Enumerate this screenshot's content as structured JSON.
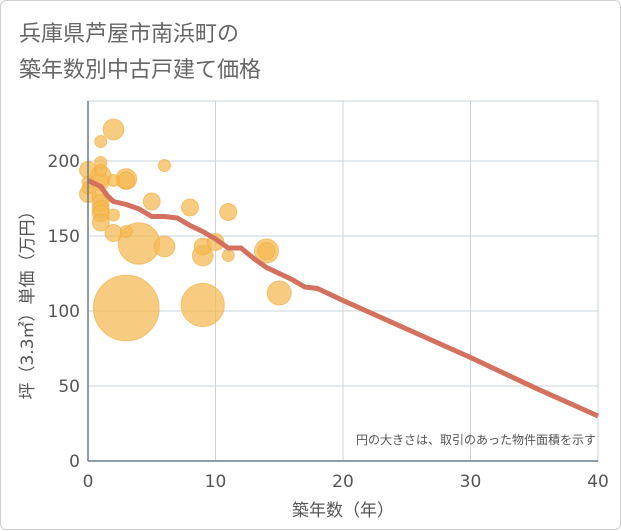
{
  "chart_data": {
    "type": "scatter",
    "title_lines": [
      "兵庫県芦屋市南浜町の",
      "築年数別中古戸建て価格"
    ],
    "xlabel": "築年数（年）",
    "ylabel": "坪（3.3㎡）単価（万円）",
    "xlim": [
      0,
      40
    ],
    "ylim": [
      0,
      240
    ],
    "x_ticks": [
      0,
      10,
      20,
      30,
      40
    ],
    "y_ticks": [
      0,
      50,
      100,
      150,
      200
    ],
    "grid": true,
    "note": "円の大きさは、取引のあった物件面積を示す",
    "colors": {
      "bubble": "#f5b94f",
      "bubble_stroke": "#eeaa3a",
      "line": "#d4705e",
      "grid": "#c9d3dc",
      "axis": "#6b7d8b"
    },
    "bubbles": [
      {
        "x": 2,
        "y": 221,
        "size": 3
      },
      {
        "x": 0,
        "y": 194,
        "size": 2
      },
      {
        "x": 1,
        "y": 213,
        "size": 1
      },
      {
        "x": 1,
        "y": 199,
        "size": 1
      },
      {
        "x": 1,
        "y": 194,
        "size": 1
      },
      {
        "x": 1,
        "y": 190,
        "size": 3
      },
      {
        "x": 1,
        "y": 186,
        "size": 2
      },
      {
        "x": 0,
        "y": 186,
        "size": 1
      },
      {
        "x": 2,
        "y": 187,
        "size": 1
      },
      {
        "x": 3,
        "y": 188,
        "size": 3
      },
      {
        "x": 3,
        "y": 187,
        "size": 2
      },
      {
        "x": 0,
        "y": 182,
        "size": 1
      },
      {
        "x": 0,
        "y": 178,
        "size": 2
      },
      {
        "x": 1,
        "y": 176,
        "size": 2
      },
      {
        "x": 1,
        "y": 172,
        "size": 2
      },
      {
        "x": 1,
        "y": 168,
        "size": 2
      },
      {
        "x": 1,
        "y": 165,
        "size": 2
      },
      {
        "x": 2,
        "y": 164,
        "size": 1
      },
      {
        "x": 1,
        "y": 159,
        "size": 2
      },
      {
        "x": 2,
        "y": 152,
        "size": 2
      },
      {
        "x": 3,
        "y": 153,
        "size": 1
      },
      {
        "x": 5,
        "y": 173,
        "size": 2
      },
      {
        "x": 6,
        "y": 197,
        "size": 1
      },
      {
        "x": 8,
        "y": 169,
        "size": 2
      },
      {
        "x": 11,
        "y": 166,
        "size": 2
      },
      {
        "x": 4,
        "y": 145,
        "size": 12
      },
      {
        "x": 6,
        "y": 143,
        "size": 3
      },
      {
        "x": 9,
        "y": 143,
        "size": 2
      },
      {
        "x": 9,
        "y": 137,
        "size": 3
      },
      {
        "x": 10,
        "y": 146,
        "size": 2
      },
      {
        "x": 11,
        "y": 137,
        "size": 1
      },
      {
        "x": 14,
        "y": 140,
        "size": 4
      },
      {
        "x": 14,
        "y": 140,
        "size": 2
      },
      {
        "x": 3,
        "y": 102,
        "size": 30
      },
      {
        "x": 9,
        "y": 104,
        "size": 13
      },
      {
        "x": 15,
        "y": 112,
        "size": 4
      }
    ],
    "trend_line": {
      "x": [
        0,
        0.5,
        1,
        1.5,
        2,
        3,
        4,
        5,
        6,
        7,
        8,
        9,
        10,
        11,
        12,
        13,
        14,
        15,
        16,
        17,
        18,
        19,
        20,
        25,
        30,
        35,
        40
      ],
      "y": [
        187,
        185,
        183,
        177,
        173,
        171,
        168,
        163,
        163,
        162,
        157,
        153,
        148,
        142,
        142,
        135,
        129,
        125,
        121,
        116,
        115,
        111,
        107,
        88,
        69,
        49,
        30
      ]
    }
  }
}
